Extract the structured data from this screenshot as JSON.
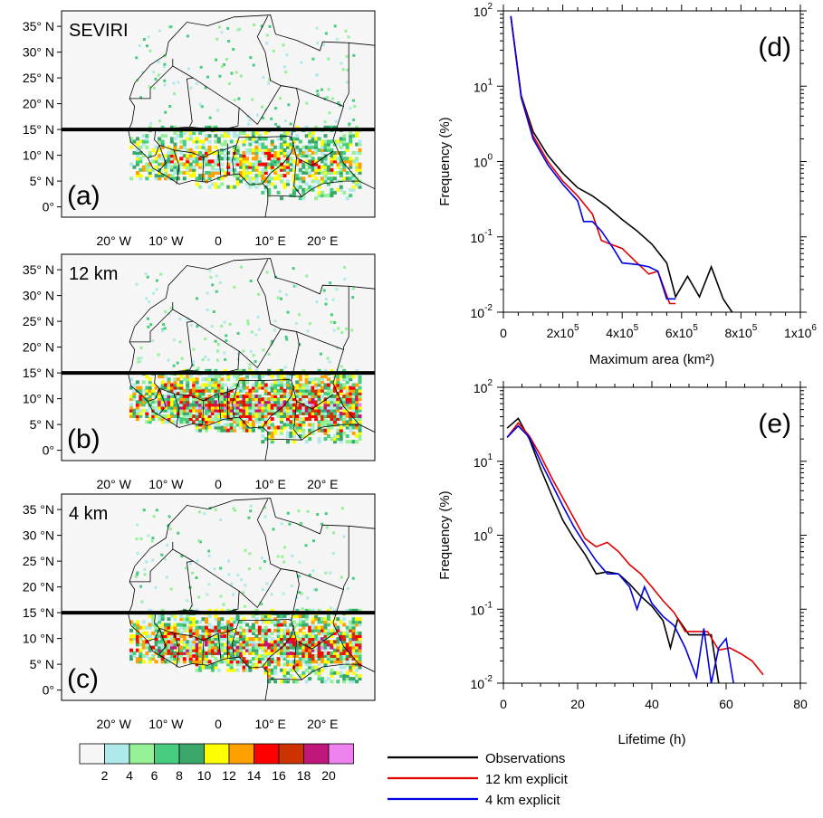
{
  "maps": [
    {
      "letter": "(a)",
      "name": "SEVIRI",
      "lat_labels": [
        "35° N",
        "30° N",
        "25° N",
        "20° N",
        "15° N",
        "10° N",
        "5° N",
        "0°"
      ],
      "lon_labels": [
        "20° W",
        "10° W",
        "0",
        "10° E",
        "20° E"
      ],
      "intensity": 0.55
    },
    {
      "letter": "(b)",
      "name": "12 km",
      "lat_labels": [
        "35° N",
        "30° N",
        "25° N",
        "20° N",
        "15° N",
        "10° N",
        "5° N",
        "0°"
      ],
      "lon_labels": [
        "20° W",
        "10° W",
        "0",
        "10° E",
        "20° E"
      ],
      "intensity": 0.85
    },
    {
      "letter": "(c)",
      "name": "4 km",
      "lat_labels": [
        "35 °N",
        "30 °N",
        "25 °N",
        "20 °N",
        "15 °N",
        "10 °N",
        "5° N",
        "0°"
      ],
      "lon_labels": [
        "20° W",
        "10° W",
        "0",
        "10° E",
        "20° E"
      ],
      "intensity": 0.8
    }
  ],
  "colorbar": {
    "colors": [
      "#f7f7f7",
      "#aeeaea",
      "#96f096",
      "#48cc80",
      "#3aa86a",
      "#ffff00",
      "#ffa000",
      "#ff0000",
      "#cc3300",
      "#c0187a",
      "#ee82ee"
    ],
    "labels": [
      "2",
      "4",
      "6",
      "8",
      "10",
      "12",
      "14",
      "16",
      "18",
      "20"
    ]
  },
  "legend": [
    {
      "label": "Observations",
      "color": "#000000"
    },
    {
      "label": "12 km explicit",
      "color": "#e00000"
    },
    {
      "label": "4 km explicit",
      "color": "#0000e0"
    }
  ],
  "chart_data": [
    {
      "type": "line",
      "letter": "(d)",
      "xlabel": "Maximum area (km²)",
      "ylabel": "Frequency (%)",
      "xlim": [
        0,
        1000000
      ],
      "ylim": [
        0.01,
        100
      ],
      "yscale": "log",
      "xticks": [
        {
          "value": 0,
          "base": "0",
          "exp": ""
        },
        {
          "value": 200000,
          "base": "2x10",
          "exp": "5"
        },
        {
          "value": 400000,
          "base": "4x10",
          "exp": "5"
        },
        {
          "value": 600000,
          "base": "6x10",
          "exp": "5"
        },
        {
          "value": 800000,
          "base": "8x10",
          "exp": "5"
        },
        {
          "value": 1000000,
          "base": "1x10",
          "exp": "6"
        }
      ],
      "yticks": [
        {
          "value": 0.01,
          "exp": "-2"
        },
        {
          "value": 0.1,
          "exp": "-1"
        },
        {
          "value": 1,
          "exp": "0"
        },
        {
          "value": 10,
          "exp": "1"
        },
        {
          "value": 100,
          "exp": "2"
        }
      ],
      "series": [
        {
          "name": "Observations",
          "color": "#000000",
          "x": [
            25000,
            60000,
            100000,
            150000,
            200000,
            250000,
            300000,
            350000,
            400000,
            450000,
            500000,
            550000,
            580000,
            620000,
            660000,
            700000,
            740000,
            770000
          ],
          "y": [
            85,
            7.5,
            2.5,
            1.2,
            0.7,
            0.45,
            0.35,
            0.25,
            0.17,
            0.12,
            0.08,
            0.045,
            0.016,
            0.03,
            0.016,
            0.04,
            0.015,
            0.01
          ]
        },
        {
          "name": "12 km explicit",
          "color": "#e00000",
          "x": [
            25000,
            60000,
            100000,
            150000,
            200000,
            250000,
            300000,
            330000,
            360000,
            400000,
            450000,
            490000,
            520000,
            560000,
            580000
          ],
          "y": [
            85,
            7.2,
            2.2,
            1.0,
            0.55,
            0.35,
            0.2,
            0.09,
            0.08,
            0.07,
            0.045,
            0.032,
            0.035,
            0.013,
            0.013
          ]
        },
        {
          "name": "4 km explicit",
          "color": "#0000e0",
          "x": [
            25000,
            60000,
            100000,
            150000,
            200000,
            250000,
            270000,
            300000,
            330000,
            370000,
            400000,
            450000,
            490000,
            520000,
            550000,
            580000
          ],
          "y": [
            85,
            7,
            2.0,
            0.9,
            0.5,
            0.3,
            0.16,
            0.16,
            0.12,
            0.07,
            0.045,
            0.043,
            0.04,
            0.035,
            0.015,
            0.015
          ]
        }
      ]
    },
    {
      "type": "line",
      "letter": "(e)",
      "xlabel": "Lifetime (h)",
      "ylabel": "Frequency (%)",
      "xlim": [
        0,
        80
      ],
      "ylim": [
        0.01,
        100
      ],
      "yscale": "log",
      "xticks": [
        {
          "value": 0,
          "base": "0",
          "exp": ""
        },
        {
          "value": 20,
          "base": "20",
          "exp": ""
        },
        {
          "value": 40,
          "base": "40",
          "exp": ""
        },
        {
          "value": 60,
          "base": "60",
          "exp": ""
        },
        {
          "value": 80,
          "base": "80",
          "exp": ""
        }
      ],
      "yticks": [
        {
          "value": 0.01,
          "exp": "-2"
        },
        {
          "value": 0.1,
          "exp": "-1"
        },
        {
          "value": 1,
          "exp": "0"
        },
        {
          "value": 10,
          "exp": "1"
        },
        {
          "value": 100,
          "exp": "2"
        }
      ],
      "series": [
        {
          "name": "Observations",
          "color": "#000000",
          "x": [
            1,
            4,
            7,
            10,
            13,
            16,
            19,
            22,
            25,
            28,
            31,
            34,
            37,
            40,
            43,
            45,
            47,
            50,
            53,
            56,
            58
          ],
          "y": [
            28,
            38,
            20,
            8,
            3.5,
            1.6,
            0.9,
            0.55,
            0.3,
            0.32,
            0.3,
            0.22,
            0.15,
            0.11,
            0.07,
            0.03,
            0.075,
            0.045,
            0.045,
            0.045,
            0.01
          ]
        },
        {
          "name": "12 km explicit",
          "color": "#e00000",
          "x": [
            1,
            4,
            7,
            10,
            13,
            16,
            19,
            22,
            25,
            28,
            31,
            34,
            37,
            40,
            43,
            46,
            49,
            52,
            55,
            58,
            61,
            64,
            67,
            70
          ],
          "y": [
            21,
            33,
            22,
            12,
            6,
            3.2,
            1.7,
            0.9,
            0.7,
            0.8,
            0.6,
            0.4,
            0.3,
            0.2,
            0.13,
            0.09,
            0.05,
            0.05,
            0.05,
            0.028,
            0.03,
            0.025,
            0.02,
            0.013
          ]
        },
        {
          "name": "4 km explicit",
          "color": "#0000e0",
          "x": [
            1,
            4,
            7,
            10,
            13,
            16,
            19,
            22,
            25,
            28,
            31,
            34,
            36,
            38,
            40,
            43,
            46,
            49,
            52,
            54,
            56,
            58,
            60,
            62
          ],
          "y": [
            21,
            30,
            21,
            10,
            5,
            2.5,
            1.3,
            0.75,
            0.45,
            0.3,
            0.3,
            0.2,
            0.1,
            0.2,
            0.12,
            0.08,
            0.06,
            0.03,
            0.012,
            0.055,
            0.01,
            0.03,
            0.04,
            0.01
          ]
        }
      ]
    }
  ]
}
